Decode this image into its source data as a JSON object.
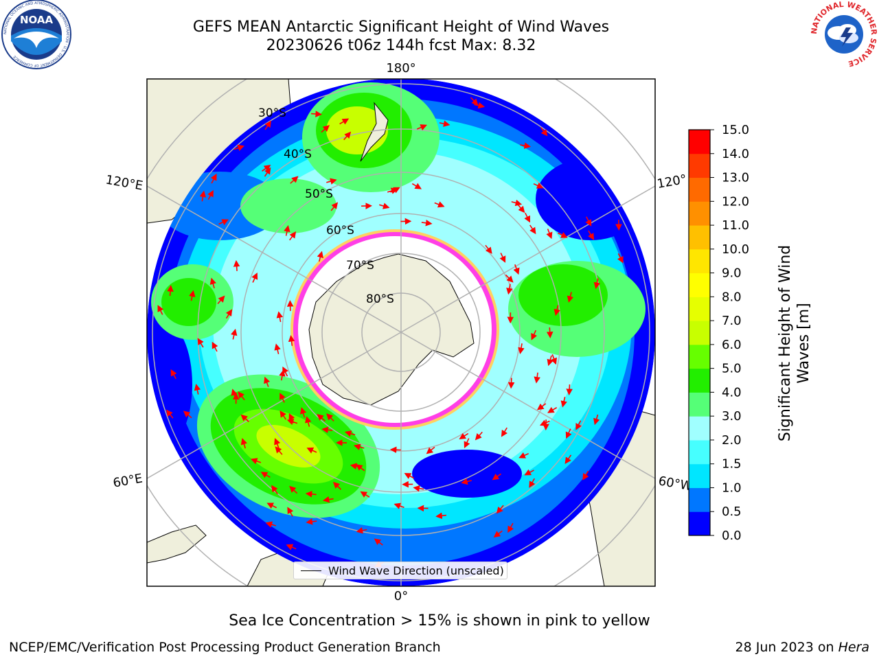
{
  "header": {
    "title_line1": "GEFS MEAN Antarctic Significant Height of Wind Waves",
    "title_line2": "20230626 t06z 144h fcst   Max: 8.32"
  },
  "logos": {
    "left": {
      "name": "noaa-logo",
      "text": "NOAA",
      "ring_text": "NATIONAL OCEANIC AND ATMOSPHERIC ADMINISTRATION · U.S. DEPARTMENT OF COMMERCE"
    },
    "right": {
      "name": "nws-logo",
      "ring_text": "NATIONAL WEATHER SERVICE"
    }
  },
  "map": {
    "projection": "south-polar-stereographic",
    "meridian_labels": {
      "top": "180°",
      "bottom": "0°",
      "left_upper": "120°E",
      "left_lower": "60°E",
      "right_upper": "120°",
      "right_lower": "60°W"
    },
    "latitude_labels": [
      "30°S",
      "40°S",
      "50°S",
      "60°S",
      "70°S",
      "80°S"
    ],
    "legend": "Wind Wave Direction (unscaled)",
    "colors": {
      "land": "#efefdc",
      "ice_edge": "#ff3ee6",
      "ice_edge_yellow": "#ffd060",
      "grid": "#b0b0b0",
      "arrow": "#ff0000"
    }
  },
  "colorbar": {
    "label_line1": "Significant Height of Wind",
    "label_line2": "Waves [m]",
    "ticks": [
      "0.0",
      "0.5",
      "1.0",
      "1.5",
      "2.0",
      "3.0",
      "4.0",
      "5.0",
      "6.0",
      "7.0",
      "8.0",
      "9.0",
      "10.0",
      "11.0",
      "12.0",
      "13.0",
      "14.0",
      "15.0"
    ],
    "colors": [
      "#0000ff",
      "#0077ff",
      "#00e6ff",
      "#46ffff",
      "#a0ffff",
      "#55ff77",
      "#22ee00",
      "#66ff00",
      "#c8ff00",
      "#e6ff00",
      "#ffff00",
      "#ffe600",
      "#ffc000",
      "#ff9000",
      "#ff6a00",
      "#ff3a00",
      "#ff0000"
    ]
  },
  "caption": "Sea Ice Concentration > 15% is shown in pink to yellow",
  "footer": {
    "left": "NCEP/EMC/Verification Post Processing Product Generation Branch",
    "right_date": "28 Jun 2023 on ",
    "right_host": "Hera"
  }
}
